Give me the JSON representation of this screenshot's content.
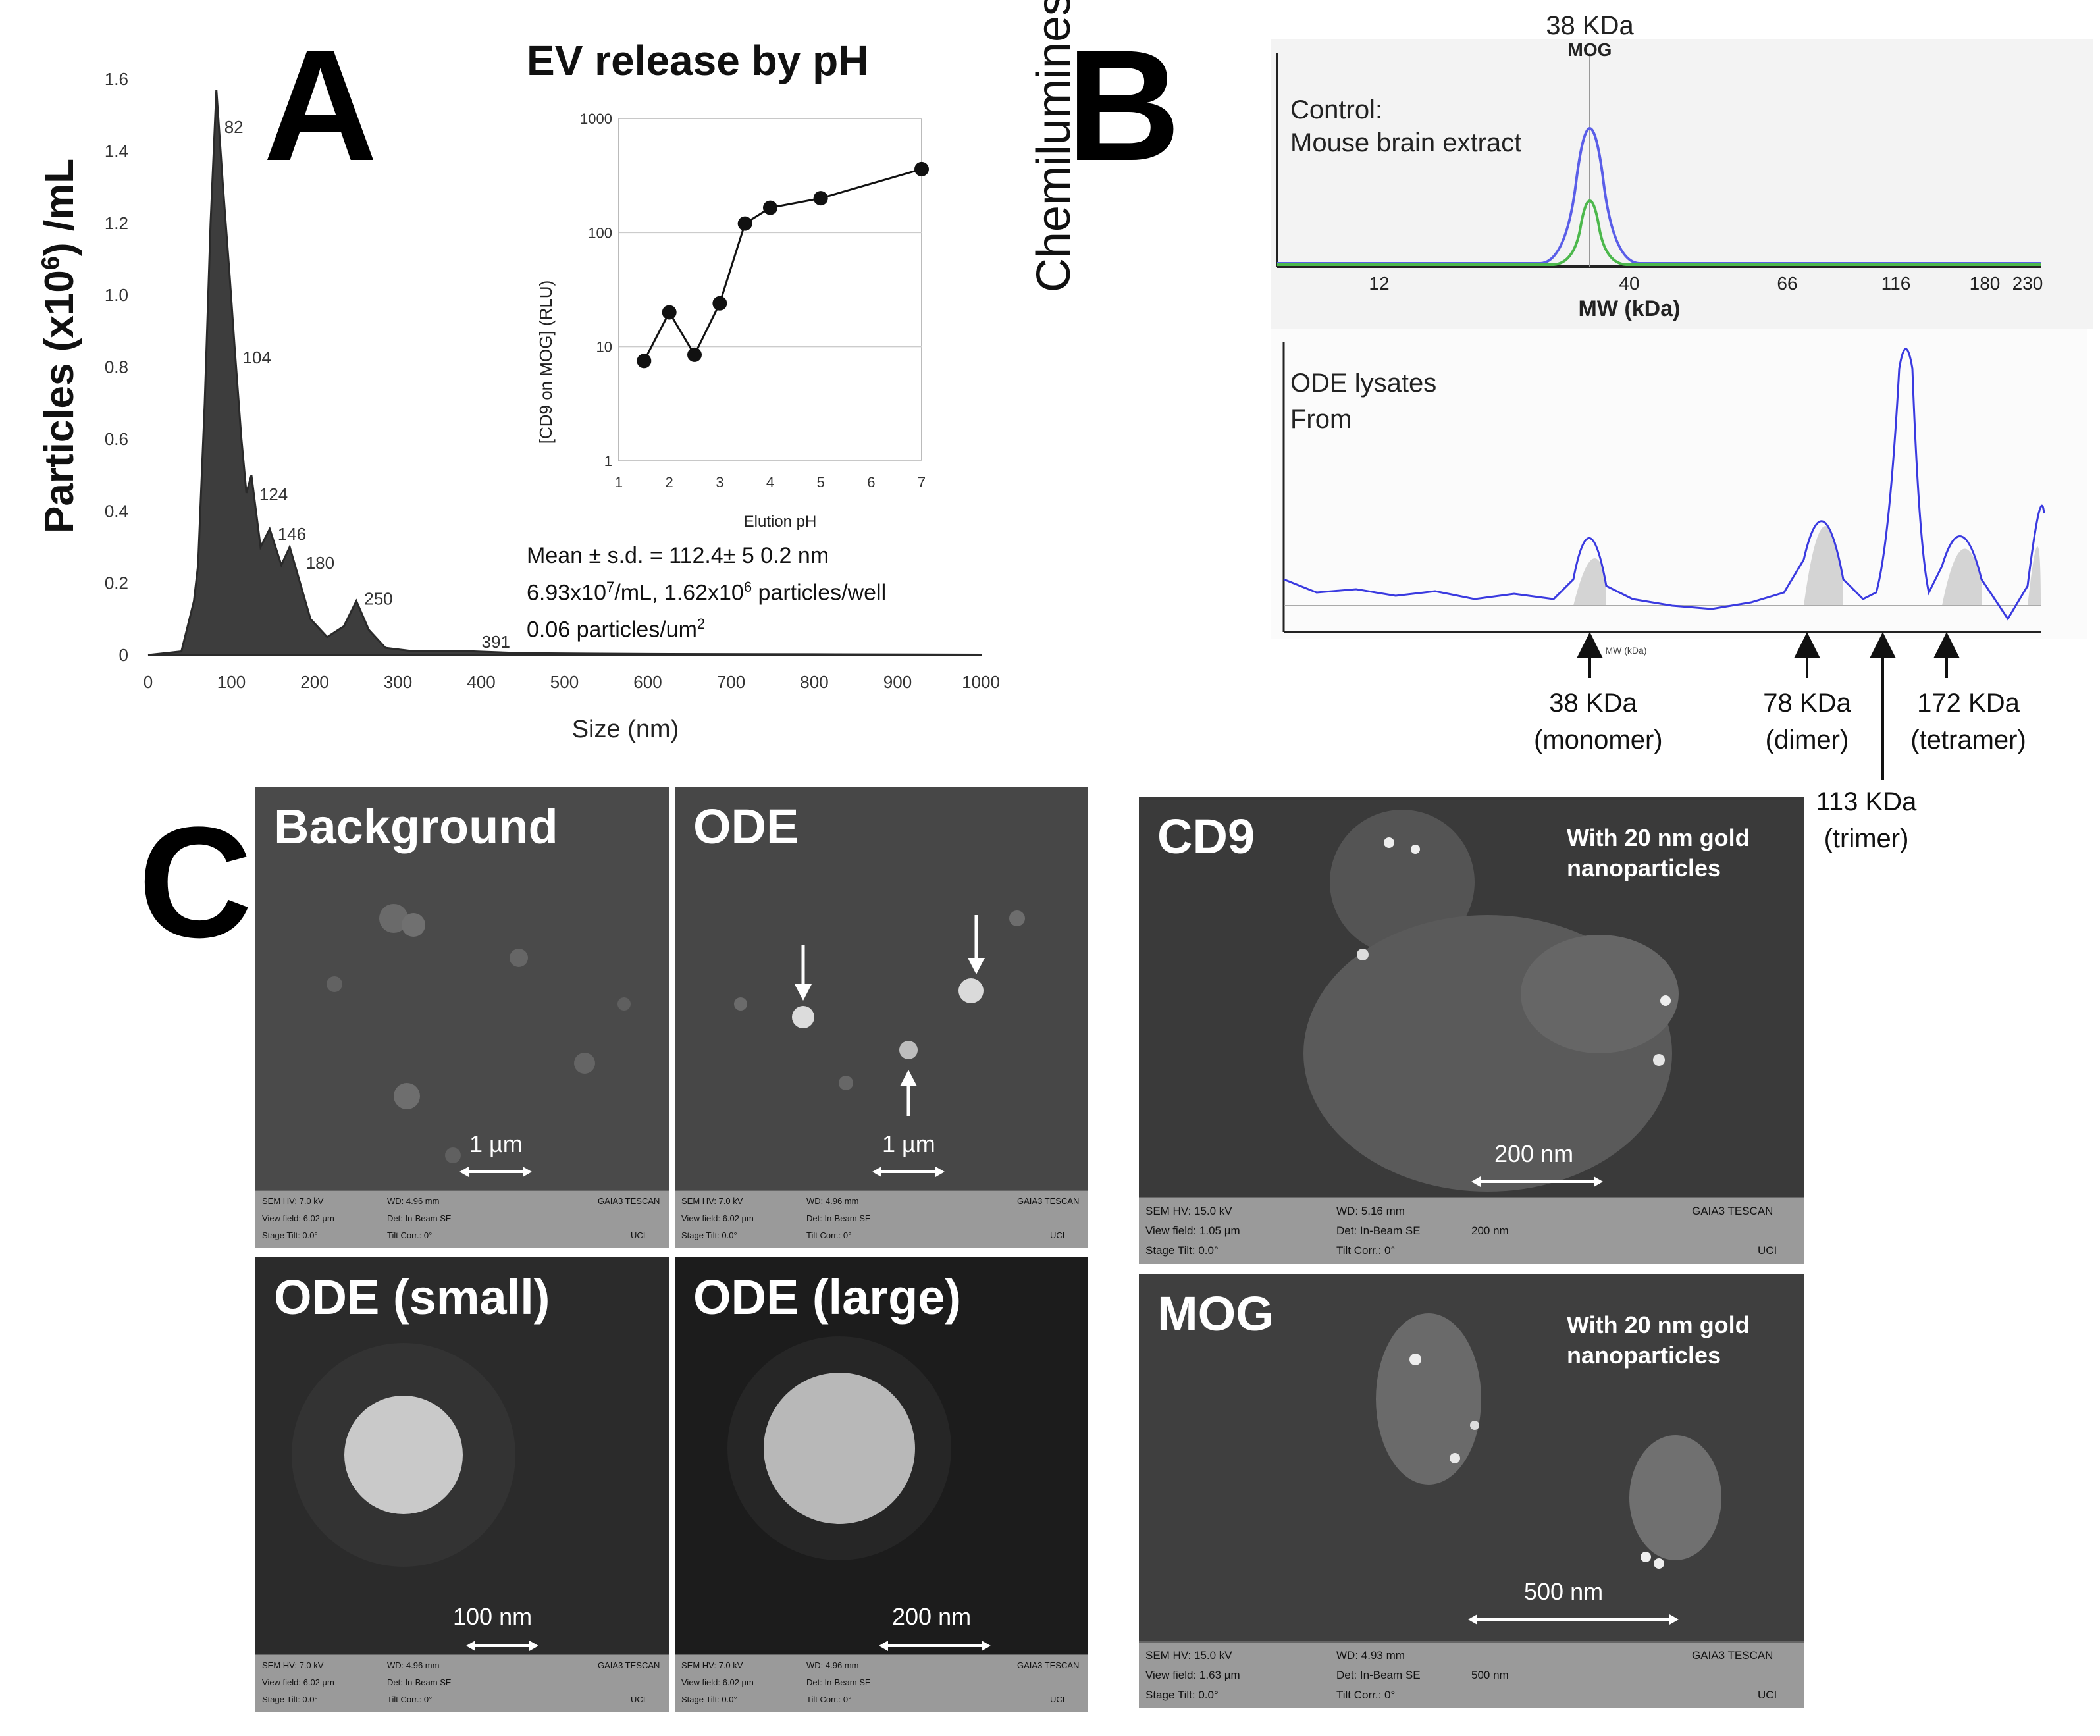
{
  "panels": {
    "a": "A",
    "b": "B",
    "c": "C"
  },
  "panel_a": {
    "ylabel_prefix": "Particles (x10",
    "ylabel_exp": "6",
    "ylabel_suffix": ") /mL",
    "xlabel": "Size (nm)",
    "peak_labels": [
      "82",
      "104",
      "124",
      "146",
      "180",
      "250",
      "391"
    ],
    "inset_title": "EV release by pH",
    "inset_ylabel": "[CD9 on MOG] (RLU)",
    "inset_xlabel": "Elution pH",
    "stats_line1": "Mean ± s.d. = 112.4± 5 0.2 nm",
    "stats_line2_a": "6.93x10",
    "stats_line2_b": "7",
    "stats_line2_c": "/mL, 1.62x10",
    "stats_line2_d": "6",
    "stats_line2_e": " particles/well",
    "stats_line3_a": "0.06 particles/um",
    "stats_line3_b": "2"
  },
  "panel_b": {
    "ylabel": "Chemiluminescence",
    "top_peak_label": "38 KDa",
    "top_peak_sub": "MOG",
    "control_line1": "Control:",
    "control_line2": "Mouse brain extract",
    "top_xlabel": "MW (kDa)",
    "top_ticks": [
      "12",
      "40",
      "66",
      "116",
      "180",
      "230"
    ],
    "lysate_line1": "ODE lysates",
    "lysate_line2": "From",
    "bottom_xlabel": "MW (kDa)",
    "arrows": [
      {
        "kda": "38 KDa",
        "form": "(monomer)"
      },
      {
        "kda": "78 KDa",
        "form": "(dimer)"
      },
      {
        "kda": "113 KDa",
        "form": "(trimer)"
      },
      {
        "kda": "172 KDa",
        "form": "(tetramer)"
      }
    ]
  },
  "panel_c": {
    "images": [
      {
        "title": "Background",
        "scale": "1 µm"
      },
      {
        "title": "ODE",
        "scale": "1 µm"
      },
      {
        "title": "ODE (small)",
        "scale": "100 nm"
      },
      {
        "title": "ODE (large)",
        "scale": "200 nm"
      },
      {
        "title": "CD9",
        "scale": "200 nm",
        "note_line1": "With 20 nm gold",
        "note_line2": "nanoparticles"
      },
      {
        "title": "MOG",
        "scale": "500 nm",
        "note_line1": "With 20 nm gold",
        "note_line2": "nanoparticles"
      }
    ],
    "sem_small": {
      "hv": "SEM HV: 7.0 kV",
      "wd": "WD: 4.96 mm",
      "tescan": "GAIA3 TESCAN",
      "view": "View field: 6.02 µm",
      "det": "Det: In-Beam SE",
      "tilt": "Stage Tilt: 0.0°",
      "corr": "Tilt Corr.: 0°",
      "uci": "UCI"
    },
    "sem_cd9": {
      "hv": "SEM HV: 15.0 kV",
      "wd": "WD: 5.16 mm",
      "tescan": "GAIA3 TESCAN",
      "view": "View field: 1.05 µm",
      "det": "Det: In-Beam SE",
      "scale": "200 nm",
      "tilt": "Stage Tilt: 0.0°",
      "corr": "Tilt Corr.: 0°",
      "uci": "UCI"
    },
    "sem_mog": {
      "hv": "SEM HV: 15.0 kV",
      "wd": "WD: 4.93 mm",
      "tescan": "GAIA3 TESCAN",
      "view": "View field: 1.63 µm",
      "det": "Det: In-Beam SE",
      "scale": "500 nm",
      "tilt": "Stage Tilt: 0.0°",
      "corr": "Tilt Corr.: 0°",
      "uci": "UCI"
    }
  },
  "chart_data": [
    {
      "type": "area",
      "ylabel": "Particles (x10^6) /mL",
      "xlabel": "Size (nm)",
      "xlim": [
        0,
        1000
      ],
      "ylim": [
        0,
        1.6
      ],
      "xticks": [
        0,
        100,
        200,
        300,
        400,
        500,
        600,
        700,
        800,
        900,
        1000
      ],
      "yticks": [
        0,
        0.2,
        0.4,
        0.6,
        0.8,
        1.0,
        1.2,
        1.4,
        1.6
      ],
      "x": [
        0,
        40,
        55,
        60,
        68,
        75,
        82,
        90,
        98,
        104,
        112,
        118,
        124,
        135,
        146,
        160,
        170,
        180,
        195,
        215,
        235,
        250,
        265,
        285,
        320,
        391,
        450,
        600,
        800,
        1000
      ],
      "y": [
        0,
        0.01,
        0.15,
        0.25,
        0.7,
        1.2,
        1.57,
        1.3,
        1.05,
        0.85,
        0.6,
        0.45,
        0.5,
        0.3,
        0.35,
        0.25,
        0.3,
        0.22,
        0.1,
        0.05,
        0.08,
        0.15,
        0.07,
        0.02,
        0.01,
        0.01,
        0.005,
        0.003,
        0.002,
        0.001
      ]
    },
    {
      "type": "line",
      "title": "EV release by pH",
      "xlabel": "Elution pH",
      "ylabel": "[CD9 on MOG] (RLU)",
      "yscale": "log",
      "xlim": [
        1,
        7
      ],
      "ylim": [
        1,
        1000
      ],
      "xticks": [
        1,
        2,
        3,
        4,
        5,
        6,
        7
      ],
      "yticks": [
        1,
        10,
        100,
        1000
      ],
      "x": [
        1.5,
        2,
        2.5,
        3,
        3.5,
        4,
        5,
        7
      ],
      "y": [
        7.5,
        20,
        8.5,
        24,
        120,
        165,
        200,
        360
      ]
    }
  ]
}
